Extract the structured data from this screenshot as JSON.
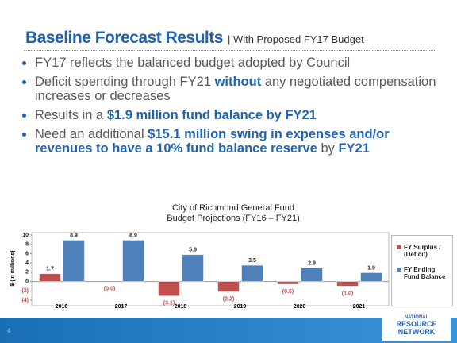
{
  "header": {
    "title": "Baseline Forecast Results",
    "subtitle": "| With Proposed FY17 Budget"
  },
  "bullets": [
    [
      "FY17 reflects the balanced budget adopted by Council"
    ],
    [
      "Deficit spending through FY21",
      "without",
      "any negotiated compensation increases or decreases"
    ],
    [
      "Results in a",
      "$1.9 million fund balance by FY21"
    ],
    [
      "Need an additional",
      "$15.1 million swing in expenses and/or revenues to have a 10% fund balance reserve",
      "by",
      "FY21"
    ]
  ],
  "footer": {
    "page": "4",
    "logo_top": "NATIONAL",
    "logo_main": "RESOURCE NETWORK"
  },
  "chart_data": {
    "type": "bar",
    "title": "City of Richmond General Fund",
    "subtitle": "Budget Projections (FY16 – FY21)",
    "y_label": "$ (in millions)",
    "categories": [
      "2016",
      "2017",
      "2018",
      "2019",
      "2020",
      "2021"
    ],
    "series": [
      {
        "name": "FY Surplus / (Deficit)",
        "color": "#c0504d",
        "values": [
          1.7,
          0,
          -3.1,
          -2.2,
          -0.6,
          -1.0
        ],
        "value_labels": [
          "1.7",
          "(0.0)",
          "(3.1)",
          "(2.2)",
          "(0.6)",
          "(1.0)"
        ]
      },
      {
        "name": "FY Ending Fund Balance",
        "color": "#4f81bd",
        "values": [
          8.9,
          8.9,
          5.8,
          3.5,
          2.9,
          1.9
        ]
      }
    ],
    "ylim": [
      -4,
      10
    ],
    "yticks": [
      {
        "value": -4,
        "label": "(4)"
      },
      {
        "value": -2,
        "label": "(2)"
      },
      0,
      2,
      4,
      6,
      8,
      10
    ],
    "grid": false,
    "legend": "right"
  }
}
